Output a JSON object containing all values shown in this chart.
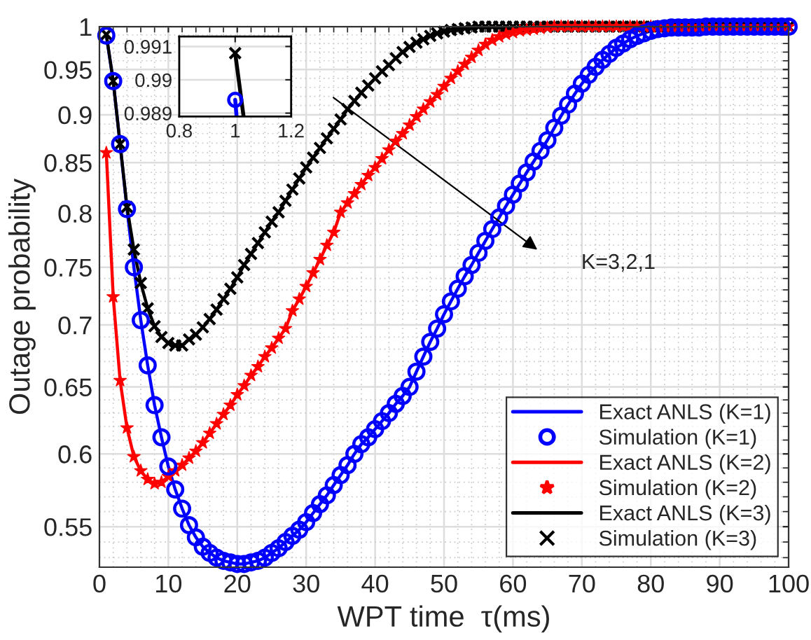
{
  "chart_data": [
    {
      "type": "line",
      "xlabel": "WPT time  τ(ms)",
      "ylabel": "Outage probability",
      "log": "y",
      "xlim": [
        0,
        100
      ],
      "xticks": [
        0,
        10,
        20,
        30,
        40,
        50,
        60,
        70,
        80,
        90,
        100
      ],
      "ylim": [
        0.524,
        1
      ],
      "yticks": [
        0.55,
        0.6,
        0.65,
        0.7,
        0.75,
        0.8,
        0.85,
        0.9,
        0.95,
        1
      ],
      "grid": true,
      "legend": "bottom right",
      "x": [
        1,
        2,
        3,
        4,
        5,
        6,
        7,
        8,
        9,
        10,
        11,
        12,
        13,
        14,
        15,
        16,
        17,
        18,
        19,
        20,
        21,
        22,
        23,
        24,
        25,
        26,
        27,
        28,
        29,
        30,
        31,
        32,
        33,
        34,
        35,
        36,
        37,
        38,
        39,
        40,
        41,
        42,
        43,
        44,
        45,
        46,
        47,
        48,
        49,
        50,
        51,
        52,
        53,
        54,
        55,
        56,
        57,
        58,
        59,
        60,
        61,
        62,
        63,
        64,
        65,
        66,
        67,
        68,
        69,
        70,
        71,
        72,
        73,
        74,
        75,
        76,
        77,
        78,
        79,
        80,
        81,
        82,
        83,
        84,
        85,
        86,
        87,
        88,
        89,
        90,
        91,
        92,
        93,
        94,
        95,
        96,
        97,
        98,
        99,
        100
      ],
      "series": [
        {
          "name": "Exact ANLS (K=1)",
          "marker": "none",
          "color": "#0000ff",
          "values": [
            0.9894,
            0.937,
            0.869,
            0.804,
            0.75,
            0.704,
            0.667,
            0.636,
            0.612,
            0.591,
            0.575,
            0.562,
            0.551,
            0.543,
            0.537,
            0.533,
            0.53,
            0.528,
            0.527,
            0.526,
            0.526,
            0.527,
            0.528,
            0.53,
            0.533,
            0.536,
            0.54,
            0.544,
            0.548,
            0.553,
            0.559,
            0.565,
            0.571,
            0.578,
            0.585,
            0.592,
            0.6,
            0.607,
            0.612,
            0.618,
            0.624,
            0.63,
            0.637,
            0.643,
            0.65,
            0.662,
            0.674,
            0.686,
            0.697,
            0.709,
            0.72,
            0.731,
            0.742,
            0.752,
            0.763,
            0.774,
            0.785,
            0.796,
            0.807,
            0.818,
            0.829,
            0.84,
            0.851,
            0.862,
            0.873,
            0.886,
            0.899,
            0.911,
            0.923,
            0.934,
            0.944,
            0.953,
            0.961,
            0.968,
            0.975,
            0.98,
            0.985,
            0.989,
            0.992,
            0.995,
            0.997,
            0.998,
            0.999,
            null,
            null,
            null,
            null,
            null,
            null,
            null,
            null,
            null,
            null,
            null,
            null,
            null,
            null,
            null,
            null,
            null
          ]
        },
        {
          "name": "Simulation (K=1)",
          "type": "scatter",
          "marker": "circle",
          "color": "#0000ff",
          "values": [
            0.9894,
            0.937,
            0.869,
            0.804,
            0.75,
            0.704,
            0.667,
            0.636,
            0.612,
            0.591,
            0.575,
            0.562,
            0.551,
            0.543,
            0.537,
            0.533,
            0.53,
            0.528,
            0.527,
            0.526,
            0.526,
            0.527,
            0.528,
            0.53,
            0.533,
            0.536,
            0.54,
            0.544,
            0.548,
            0.553,
            0.559,
            0.565,
            0.571,
            0.578,
            0.585,
            0.592,
            0.6,
            0.607,
            0.612,
            0.618,
            0.624,
            0.63,
            0.637,
            0.643,
            0.65,
            0.662,
            0.674,
            0.686,
            0.697,
            0.709,
            0.72,
            0.731,
            0.742,
            0.752,
            0.763,
            0.774,
            0.785,
            0.796,
            0.807,
            0.818,
            0.829,
            0.84,
            0.851,
            0.862,
            0.873,
            0.886,
            0.899,
            0.911,
            0.923,
            0.934,
            0.944,
            0.953,
            0.961,
            0.968,
            0.975,
            0.98,
            0.985,
            0.989,
            0.992,
            0.995,
            0.997,
            0.998,
            0.999,
            0.999,
            0.999,
            0.999,
            0.999,
            1,
            1,
            1,
            1,
            1,
            1,
            1,
            1,
            1,
            1,
            1,
            1,
            1
          ]
        },
        {
          "name": "Exact ANLS (K=2)",
          "marker": "none",
          "color": "#ff0000",
          "values": [
            0.86,
            0.724,
            0.655,
            0.619,
            0.598,
            0.588,
            0.582,
            0.579,
            0.58,
            0.584,
            0.588,
            0.592,
            0.597,
            0.602,
            0.608,
            0.615,
            0.622,
            0.629,
            0.636,
            0.644,
            0.651,
            0.659,
            0.666,
            0.674,
            0.681,
            0.689,
            0.697,
            0.712,
            0.722,
            0.733,
            0.745,
            0.757,
            0.77,
            0.782,
            0.801,
            0.81,
            0.819,
            0.828,
            0.837,
            0.845,
            0.854,
            0.863,
            0.872,
            0.88,
            0.889,
            0.898,
            0.906,
            0.914,
            0.922,
            0.931,
            0.94,
            0.948,
            0.956,
            0.964,
            0.972,
            0.979,
            0.984,
            0.988,
            0.991,
            0.993,
            0.995,
            0.996,
            0.997,
            0.998,
            0.999,
            1,
            1,
            1,
            1,
            1,
            1,
            1,
            1,
            1,
            1,
            1,
            1,
            1,
            1,
            1,
            1,
            1,
            1,
            1,
            1,
            1,
            1,
            1,
            1,
            1,
            1,
            1,
            1,
            1,
            1,
            1,
            1,
            1,
            1,
            1
          ]
        },
        {
          "name": "Simulation (K=2)",
          "type": "scatter",
          "marker": "star",
          "color": "#ff0000",
          "values": [
            0.86,
            0.724,
            0.655,
            0.619,
            0.598,
            0.588,
            0.582,
            0.579,
            0.58,
            0.584,
            0.588,
            0.592,
            0.597,
            0.602,
            0.608,
            0.615,
            0.622,
            0.629,
            0.636,
            0.644,
            0.651,
            0.659,
            0.666,
            0.674,
            0.681,
            0.689,
            0.697,
            0.712,
            0.722,
            0.733,
            0.745,
            0.757,
            0.77,
            0.782,
            0.801,
            0.81,
            0.819,
            0.828,
            0.837,
            0.845,
            0.854,
            0.863,
            0.872,
            0.88,
            0.889,
            0.898,
            0.906,
            0.914,
            0.922,
            0.931,
            0.94,
            0.948,
            0.956,
            0.964,
            0.972,
            0.979,
            0.984,
            0.988,
            0.991,
            0.993,
            0.995,
            0.996,
            0.997,
            0.998,
            0.999,
            1,
            1,
            1,
            1,
            1,
            1,
            1,
            1,
            1,
            1,
            1,
            1,
            1,
            1,
            1,
            1,
            1,
            1,
            1,
            1,
            1,
            1,
            1,
            1,
            1,
            1,
            1,
            1,
            1,
            1,
            1,
            1,
            1,
            1,
            1
          ]
        },
        {
          "name": "Exact ANLS (K=3)",
          "marker": "none",
          "color": "#000000",
          "values": [
            0.9908,
            0.937,
            0.869,
            0.806,
            0.766,
            0.736,
            0.714,
            0.699,
            0.69,
            0.685,
            0.683,
            0.683,
            0.688,
            0.692,
            0.698,
            0.705,
            0.713,
            0.722,
            0.731,
            0.741,
            0.752,
            0.762,
            0.772,
            0.782,
            0.792,
            0.801,
            0.812,
            0.823,
            0.834,
            0.845,
            0.855,
            0.865,
            0.875,
            0.885,
            0.895,
            0.906,
            0.915,
            0.924,
            0.932,
            0.94,
            0.948,
            0.955,
            0.963,
            0.97,
            0.976,
            0.981,
            0.985,
            0.989,
            0.992,
            0.994,
            0.996,
            0.997,
            0.998,
            0.999,
            1,
            1,
            1,
            1,
            1,
            1,
            1,
            1,
            1,
            1,
            1,
            1,
            1,
            1,
            1,
            1,
            1,
            1,
            1,
            1,
            1,
            1,
            1,
            1,
            1,
            1,
            1,
            1,
            1,
            1,
            1,
            1,
            1,
            1,
            1,
            1,
            1,
            1,
            1,
            1,
            1,
            1,
            1,
            1,
            1,
            1
          ]
        },
        {
          "name": "Simulation (K=3)",
          "type": "scatter",
          "marker": "cross",
          "color": "#000000",
          "values": [
            0.9908,
            0.937,
            0.869,
            0.806,
            0.766,
            0.736,
            0.714,
            0.699,
            0.69,
            0.685,
            0.683,
            0.683,
            0.688,
            0.692,
            0.698,
            0.705,
            0.713,
            0.722,
            0.731,
            0.741,
            0.752,
            0.762,
            0.772,
            0.782,
            0.792,
            0.801,
            0.812,
            0.823,
            0.834,
            0.845,
            0.855,
            0.865,
            0.875,
            0.885,
            0.895,
            0.906,
            0.915,
            0.924,
            0.932,
            0.94,
            0.948,
            0.955,
            0.963,
            0.97,
            0.976,
            0.981,
            0.985,
            0.989,
            0.992,
            0.994,
            0.996,
            0.997,
            0.998,
            0.999,
            1,
            1,
            1,
            1,
            1,
            1,
            1,
            1,
            1,
            1,
            1,
            1,
            1,
            1,
            1,
            1,
            1,
            1,
            1,
            1,
            1,
            1,
            1,
            1,
            1,
            1,
            1,
            1,
            1,
            1,
            1,
            1,
            1,
            1,
            1,
            1,
            1,
            1,
            1,
            1,
            1,
            1,
            1,
            1,
            1,
            1
          ]
        }
      ],
      "annotations": [
        "K=3,2,1"
      ]
    },
    {
      "type": "line",
      "xlim": [
        0.8,
        1.2
      ],
      "xticks": [
        0.8,
        1,
        1.2
      ],
      "ylim": [
        0.9889,
        0.9913
      ],
      "yticks": [
        0.989,
        0.99,
        0.991
      ],
      "grid": true,
      "series": [
        {
          "marker": "none",
          "color": "#0000ff",
          "x": [
            1,
            1.005
          ],
          "values": [
            0.9894,
            0.9889
          ]
        },
        {
          "type": "scatter",
          "marker": "circle",
          "color": "#0000ff",
          "x": [
            1
          ],
          "values": [
            0.9894
          ]
        },
        {
          "marker": "none",
          "color": "#000000",
          "x": [
            1,
            1.03
          ],
          "values": [
            0.9908,
            0.9889
          ]
        },
        {
          "type": "scatter",
          "marker": "cross",
          "color": "#000000",
          "x": [
            1
          ],
          "values": [
            0.9908
          ]
        }
      ]
    }
  ]
}
